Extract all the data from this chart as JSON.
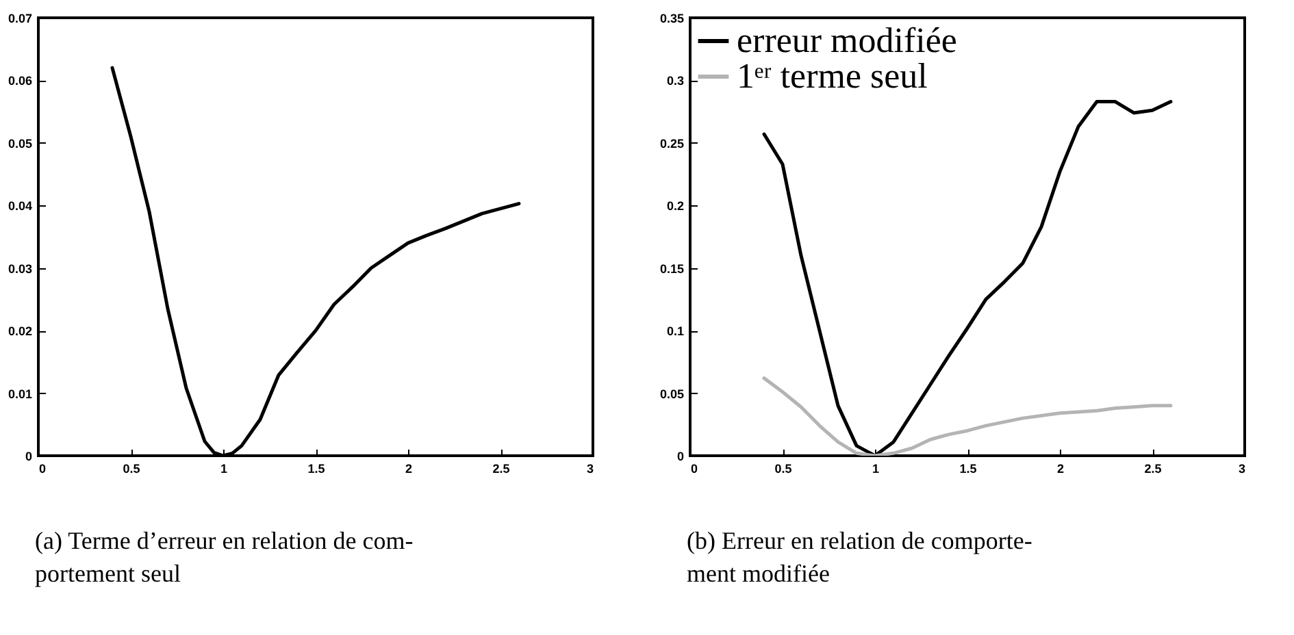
{
  "chart_data": [
    {
      "type": "line",
      "xlim": [
        0,
        3
      ],
      "xticks": [
        0,
        0.5,
        1,
        1.5,
        2,
        2.5,
        3
      ],
      "ylim": [
        0,
        0.07
      ],
      "yticks": [
        0,
        0.01,
        0.02,
        0.03,
        0.04,
        0.05,
        0.06,
        0.07
      ],
      "grid": false,
      "annotations": [
        "(a) Terme d’erreur en relation de com-",
        "portement seul"
      ],
      "x": [
        0.4,
        0.5,
        0.6,
        0.7,
        0.8,
        0.9,
        0.95,
        1.0,
        1.05,
        1.1,
        1.2,
        1.3,
        1.4,
        1.5,
        1.6,
        1.7,
        1.8,
        1.9,
        2.0,
        2.1,
        2.2,
        2.3,
        2.4,
        2.5,
        2.6
      ],
      "series": [
        {
          "color": "#000000",
          "values": [
            0.062,
            0.051,
            0.039,
            0.0235,
            0.0108,
            0.0023,
            0.0005,
            0,
            0.0004,
            0.0016,
            0.0058,
            0.0129,
            0.0165,
            0.02,
            0.0242,
            0.027,
            0.03,
            0.032,
            0.034,
            0.0352,
            0.0363,
            0.0375,
            0.0387,
            0.0395,
            0.0403
          ]
        }
      ]
    },
    {
      "type": "line",
      "xlim": [
        0,
        3
      ],
      "xticks": [
        0,
        0.5,
        1,
        1.5,
        2,
        2.5,
        3
      ],
      "ylim": [
        0,
        0.35
      ],
      "yticks": [
        0,
        0.05,
        0.1,
        0.15,
        0.2,
        0.25,
        0.3,
        0.35
      ],
      "grid": false,
      "legend": "top left",
      "annotations": [
        "(b) Erreur en relation de comporte-",
        "ment modifiée"
      ],
      "x": [
        0.4,
        0.5,
        0.6,
        0.7,
        0.8,
        0.9,
        1.0,
        1.1,
        1.2,
        1.3,
        1.4,
        1.5,
        1.6,
        1.7,
        1.8,
        1.9,
        2.0,
        2.1,
        2.2,
        2.3,
        2.4,
        2.5,
        2.6
      ],
      "series": [
        {
          "name": "erreur modifiée",
          "color": "#000000",
          "values": [
            0.257,
            0.233,
            0.16,
            0.1,
            0.04,
            0.008,
            0,
            0.011,
            0.034,
            0.057,
            0.08,
            0.102,
            0.125,
            0.139,
            0.154,
            0.183,
            0.227,
            0.263,
            0.283,
            0.283,
            0.274,
            0.276,
            0.283
          ]
        },
        {
          "name": "1ᵉʳ terme seul",
          "color": "#b4b4b4",
          "values": [
            0.062,
            0.051,
            0.039,
            0.024,
            0.011,
            0.002,
            0,
            0.002,
            0.006,
            0.013,
            0.017,
            0.02,
            0.024,
            0.027,
            0.03,
            0.032,
            0.034,
            0.035,
            0.036,
            0.038,
            0.039,
            0.04,
            0.04
          ]
        }
      ]
    }
  ]
}
